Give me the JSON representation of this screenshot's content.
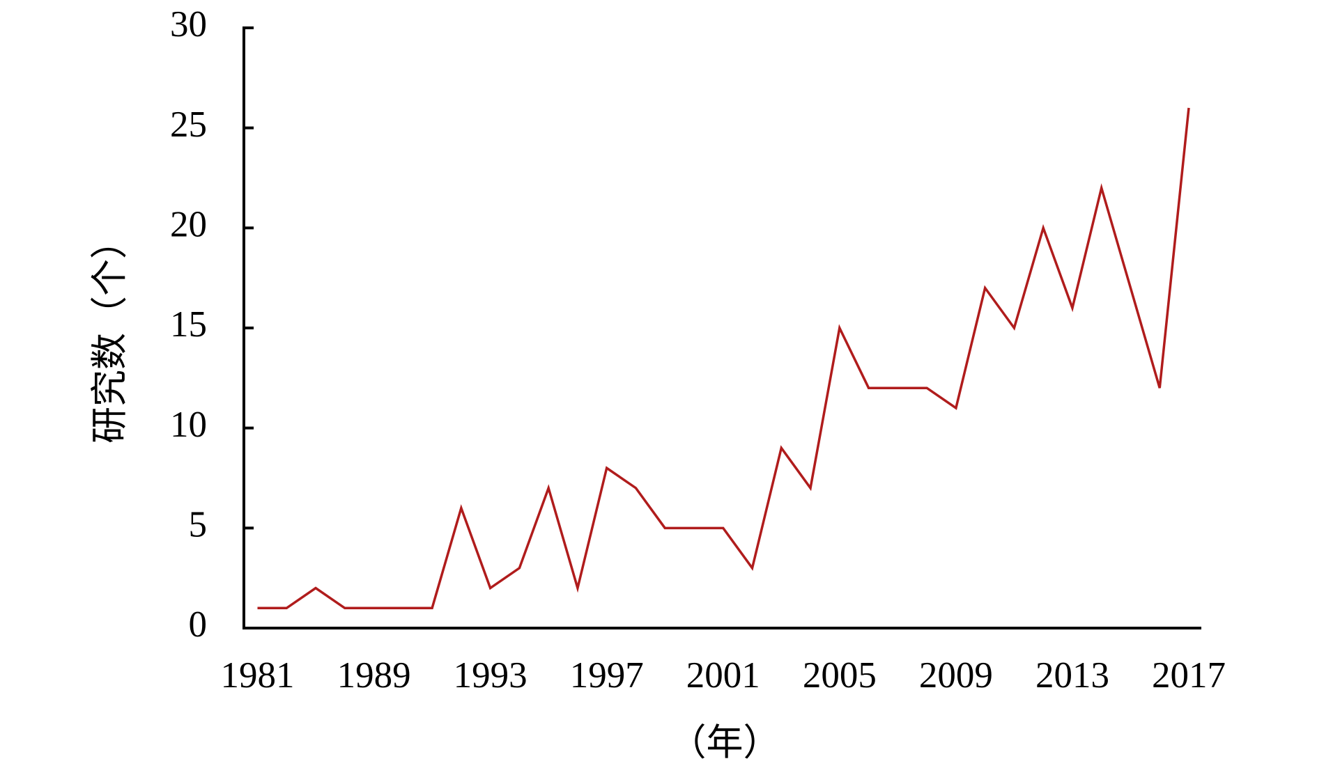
{
  "chart_data": {
    "type": "line",
    "categories": [
      "1981",
      null,
      null,
      null,
      "1989",
      null,
      null,
      null,
      "1993",
      null,
      null,
      null,
      "1997",
      null,
      null,
      null,
      "2001",
      null,
      null,
      null,
      "2005",
      null,
      null,
      null,
      "2009",
      null,
      null,
      null,
      "2013",
      null,
      null,
      null,
      "2017"
    ],
    "series": [
      {
        "name": "研究数",
        "color": "#b01c1c",
        "values": [
          1,
          1,
          2,
          1,
          1,
          1,
          1,
          6,
          2,
          3,
          7,
          2,
          8,
          7,
          5,
          5,
          5,
          3,
          9,
          7,
          15,
          12,
          12,
          12,
          11,
          17,
          15,
          20,
          16,
          22,
          17,
          12,
          26
        ]
      }
    ],
    "ylim": [
      0,
      30
    ],
    "yticks": [
      0,
      5,
      10,
      15,
      20,
      25,
      30
    ],
    "ylabel": "研究数（个）",
    "xlabel": "（年）"
  }
}
